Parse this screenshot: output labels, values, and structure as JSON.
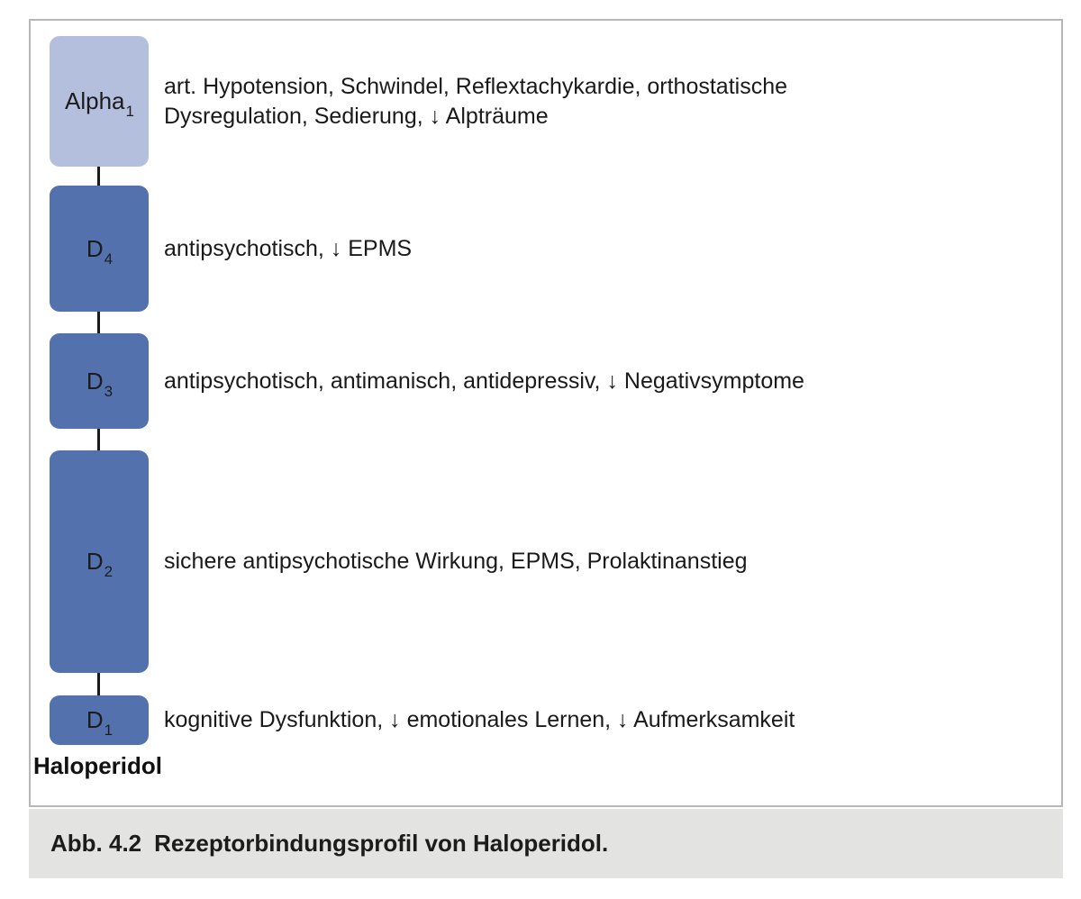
{
  "figure": {
    "drug_label": "Haloperidol",
    "caption_number": "Abb. 4.2",
    "caption_text": "Rezeptorbindungsprofil von Haloperidol."
  },
  "receptors": [
    {
      "name": "Alpha",
      "sub": "1",
      "effects": "art. Hypotension, Schwindel, Reflextachykardie, orthostatische Dysregulation, Sedierung, ↓ Alpträume",
      "color": "#b4bedd"
    },
    {
      "name": "D",
      "sub": "4",
      "effects": "antipsychotisch, ↓ EPMS",
      "color": "#5372ad"
    },
    {
      "name": "D",
      "sub": "3",
      "effects": "antipsychotisch, antimanisch, antidepressiv, ↓ Negativsymptome",
      "color": "#5372ad"
    },
    {
      "name": "D",
      "sub": "2",
      "effects": "sichere antipsychotische Wirkung, EPMS, Prolaktinanstieg",
      "color": "#5372ad"
    },
    {
      "name": "D",
      "sub": "1",
      "effects": "kognitive Dysfunktion, ↓ emotionales Lernen, ↓ Aufmerksamkeit",
      "color": "#5372ad"
    }
  ],
  "colors": {
    "receptor_box_blue": "#5372ad",
    "alpha_box_light": "#b4bedd",
    "caption_background": "#e3e3e1",
    "panel_border": "#b7b7b7",
    "connector": "#1a1a1a",
    "text": "#1a1a1a"
  }
}
